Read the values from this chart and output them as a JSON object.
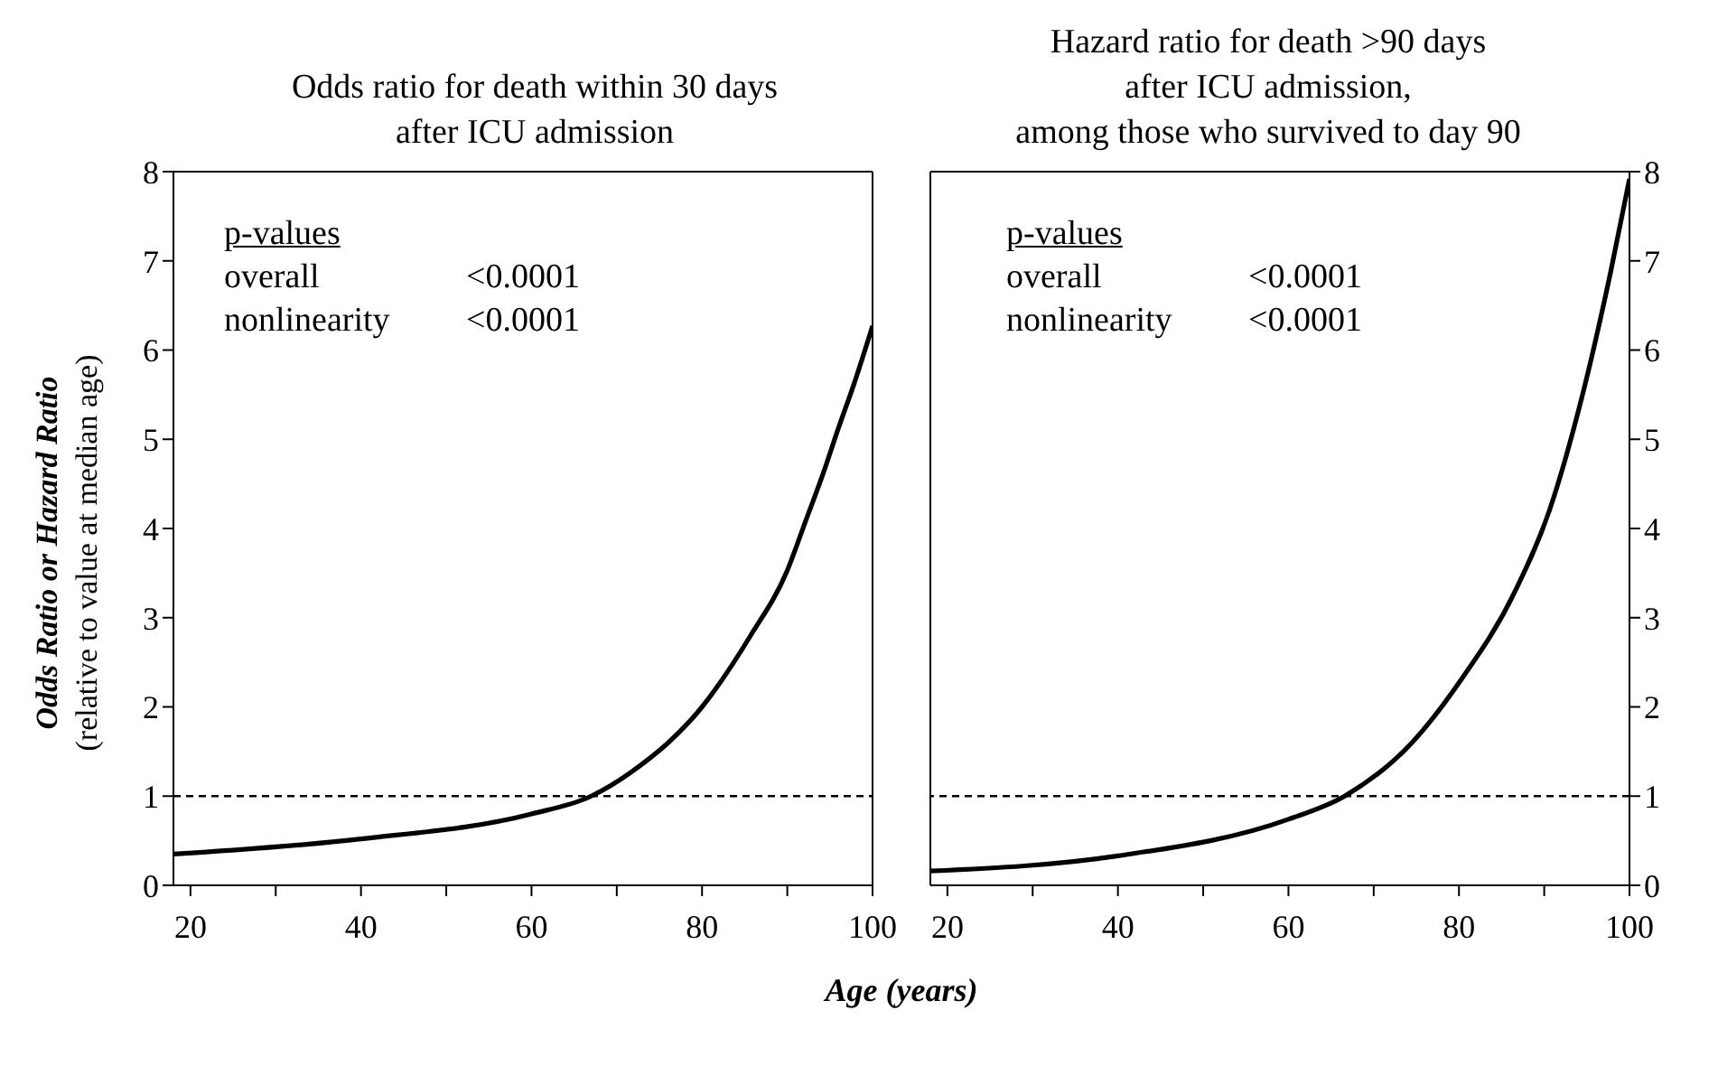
{
  "chart_data": [
    {
      "type": "line",
      "title": "Odds ratio for death within 30 days\nafter ICU admission",
      "xlabel": "Age (years)",
      "ylabel": "Odds Ratio or Hazard Ratio\n(relative to value at median age)",
      "annotations": [
        "p-values",
        "overall",
        "<0.0001",
        "nonlinearity",
        "<0.0001"
      ],
      "series": [
        {
          "color": "#000000",
          "x": [
            18,
            40,
            60,
            67,
            71.7,
            80,
            85.7,
            90,
            92.1,
            94.4,
            95.8,
            98,
            100
          ],
          "values": [
            0.35,
            0.52,
            0.8,
            1.0,
            1.27,
            2.0,
            2.8,
            3.53,
            4.07,
            4.67,
            5.07,
            5.67,
            6.27
          ]
        }
      ],
      "xlim": [
        18,
        100
      ],
      "xticks": [
        20,
        {
          "value": 30,
          "label": null
        },
        40,
        {
          "value": 50,
          "label": null
        },
        60,
        {
          "value": 70,
          "label": null
        },
        80,
        {
          "value": 90,
          "label": null
        },
        100
      ],
      "ylim": [
        0,
        8
      ],
      "yticks": [
        0,
        1,
        2,
        3,
        4,
        5,
        6,
        7,
        8
      ],
      "ref_lines": [
        {
          "axis": "y",
          "value": 1,
          "color": "#000000",
          "line_style": "dashed"
        }
      ]
    },
    {
      "type": "line",
      "title": "Hazard ratio for death >90 days\nafter ICU admission,\namong those who survived to day 90",
      "annotations": [
        "p-values",
        "overall",
        "<0.0001",
        "nonlinearity",
        "<0.0001"
      ],
      "series": [
        {
          "color": "#000000",
          "x": [
            18,
            40,
            60,
            66.6,
            74.5,
            80,
            86.6,
            90.6,
            94.6,
            97.8,
            100
          ],
          "values": [
            0.16,
            0.33,
            0.74,
            1.0,
            1.6,
            2.27,
            3.3,
            4.2,
            5.54,
            6.88,
            7.92
          ]
        }
      ],
      "xlim": [
        18,
        100
      ],
      "xticks": [
        20,
        {
          "value": 30,
          "label": null
        },
        40,
        {
          "value": 50,
          "label": null
        },
        60,
        {
          "value": 70,
          "label": null
        },
        80,
        {
          "value": 90,
          "label": null
        },
        100
      ],
      "ylim": [
        0,
        8
      ],
      "yticks": [
        0,
        1,
        2,
        3,
        4,
        5,
        6,
        7,
        8
      ],
      "ref_lines": [
        {
          "axis": "y",
          "value": 1,
          "color": "#000000",
          "line_style": "dashed"
        }
      ]
    }
  ]
}
